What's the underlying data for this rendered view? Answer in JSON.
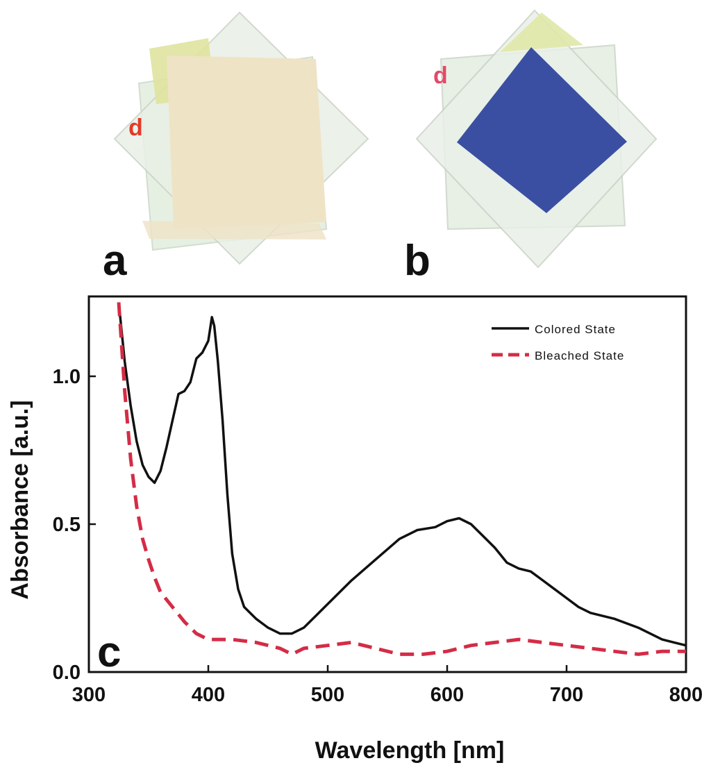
{
  "figure": {
    "panel_a_label": "a",
    "panel_b_label": "b",
    "panel_c_label": "c",
    "sample_mark": "d"
  },
  "colors": {
    "colored_line": "#111111",
    "bleached_line": "#d42c46",
    "film_bleached": "#efe3c6",
    "film_colored": "#3a4fa2"
  },
  "chart_data": {
    "type": "line",
    "xlabel": "Wavelength [nm]",
    "ylabel": "Absorbance [a.u.]",
    "xlim": [
      300,
      800
    ],
    "ylim": [
      0,
      1.27
    ],
    "xticks": [
      300,
      400,
      500,
      600,
      700,
      800
    ],
    "yticks": [
      0.0,
      0.5,
      1.0
    ],
    "xtick_labels": [
      "300",
      "400",
      "500",
      "600",
      "700",
      "800"
    ],
    "ytick_labels": [
      "0.0",
      "0.5",
      "1.0"
    ],
    "legend_position": "top-right",
    "grid": false,
    "series": [
      {
        "name": "Colored State",
        "style": "solid",
        "x": [
          325,
          330,
          335,
          340,
          345,
          350,
          355,
          360,
          365,
          370,
          375,
          380,
          385,
          390,
          395,
          400,
          403,
          405,
          408,
          412,
          416,
          420,
          425,
          430,
          440,
          450,
          460,
          470,
          480,
          490,
          500,
          520,
          540,
          560,
          575,
          590,
          600,
          610,
          620,
          630,
          640,
          650,
          660,
          670,
          680,
          690,
          700,
          710,
          720,
          740,
          760,
          780,
          790,
          800
        ],
        "values": [
          1.25,
          1.05,
          0.9,
          0.78,
          0.7,
          0.66,
          0.64,
          0.68,
          0.76,
          0.85,
          0.94,
          0.95,
          0.98,
          1.06,
          1.08,
          1.12,
          1.2,
          1.17,
          1.05,
          0.85,
          0.6,
          0.4,
          0.28,
          0.22,
          0.18,
          0.15,
          0.13,
          0.13,
          0.15,
          0.19,
          0.23,
          0.31,
          0.38,
          0.45,
          0.48,
          0.49,
          0.51,
          0.52,
          0.5,
          0.46,
          0.42,
          0.37,
          0.35,
          0.34,
          0.31,
          0.28,
          0.25,
          0.22,
          0.2,
          0.18,
          0.15,
          0.11,
          0.1,
          0.09
        ]
      },
      {
        "name": "Bleached State",
        "style": "dashed",
        "x": [
          325,
          330,
          335,
          340,
          345,
          350,
          355,
          360,
          370,
          380,
          390,
          400,
          410,
          420,
          440,
          460,
          470,
          480,
          500,
          520,
          540,
          560,
          580,
          600,
          620,
          640,
          660,
          680,
          700,
          720,
          740,
          760,
          780,
          800
        ],
        "values": [
          1.25,
          0.95,
          0.72,
          0.56,
          0.45,
          0.38,
          0.32,
          0.27,
          0.22,
          0.17,
          0.13,
          0.11,
          0.11,
          0.11,
          0.1,
          0.08,
          0.06,
          0.08,
          0.09,
          0.1,
          0.08,
          0.06,
          0.06,
          0.07,
          0.09,
          0.1,
          0.11,
          0.1,
          0.09,
          0.08,
          0.07,
          0.06,
          0.07,
          0.07
        ]
      }
    ]
  }
}
